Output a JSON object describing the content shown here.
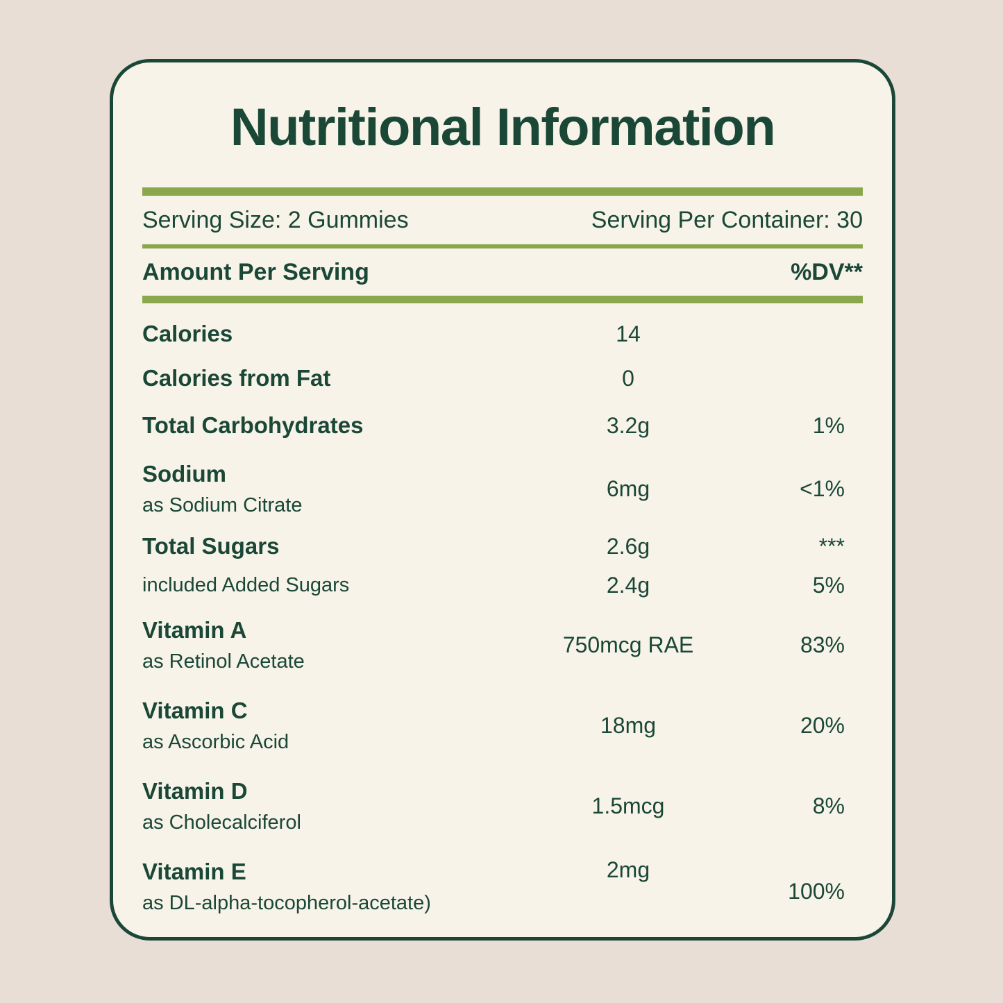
{
  "title": "Nutritional Information",
  "serving_info": {
    "serving_size": "Serving Size: 2 Gummies",
    "servings_per_container": "Serving Per Container: 30"
  },
  "table_header": {
    "amount_label": "Amount Per Serving",
    "dv_label": "%DV**"
  },
  "colors": {
    "background": "#e9ded6",
    "card_background": "#f7f3e9",
    "dark_green": "#1a4736",
    "olive_green": "#8aa74c"
  },
  "rows": [
    {
      "label": "Calories",
      "amount": "14",
      "dv": ""
    },
    {
      "label": "Calories from Fat",
      "amount": "0",
      "dv": ""
    },
    {
      "label": "Total Carbohydrates",
      "amount": "3.2g",
      "dv": "1%"
    },
    {
      "label": "Sodium",
      "sublabel": "as Sodium Citrate",
      "amount": "6mg",
      "dv": "<1%"
    },
    {
      "label": "Total Sugars",
      "amount": "2.6g",
      "dv": "***"
    },
    {
      "label": "included Added Sugars",
      "amount": "2.4g",
      "dv": "5%"
    },
    {
      "label": "Vitamin A",
      "sublabel": "as Retinol Acetate",
      "amount": "750mcg RAE",
      "dv": "83%"
    },
    {
      "label": "Vitamin C",
      "sublabel": "as Ascorbic Acid",
      "amount": "18mg",
      "dv": "20%"
    },
    {
      "label": "Vitamin D",
      "sublabel": "as Cholecalciferol",
      "amount": "1.5mcg",
      "dv": "8%"
    },
    {
      "label": "Vitamin E",
      "sublabel": "as DL-alpha-tocopherol-acetate)",
      "amount": "2mg",
      "dv": "100%"
    }
  ]
}
